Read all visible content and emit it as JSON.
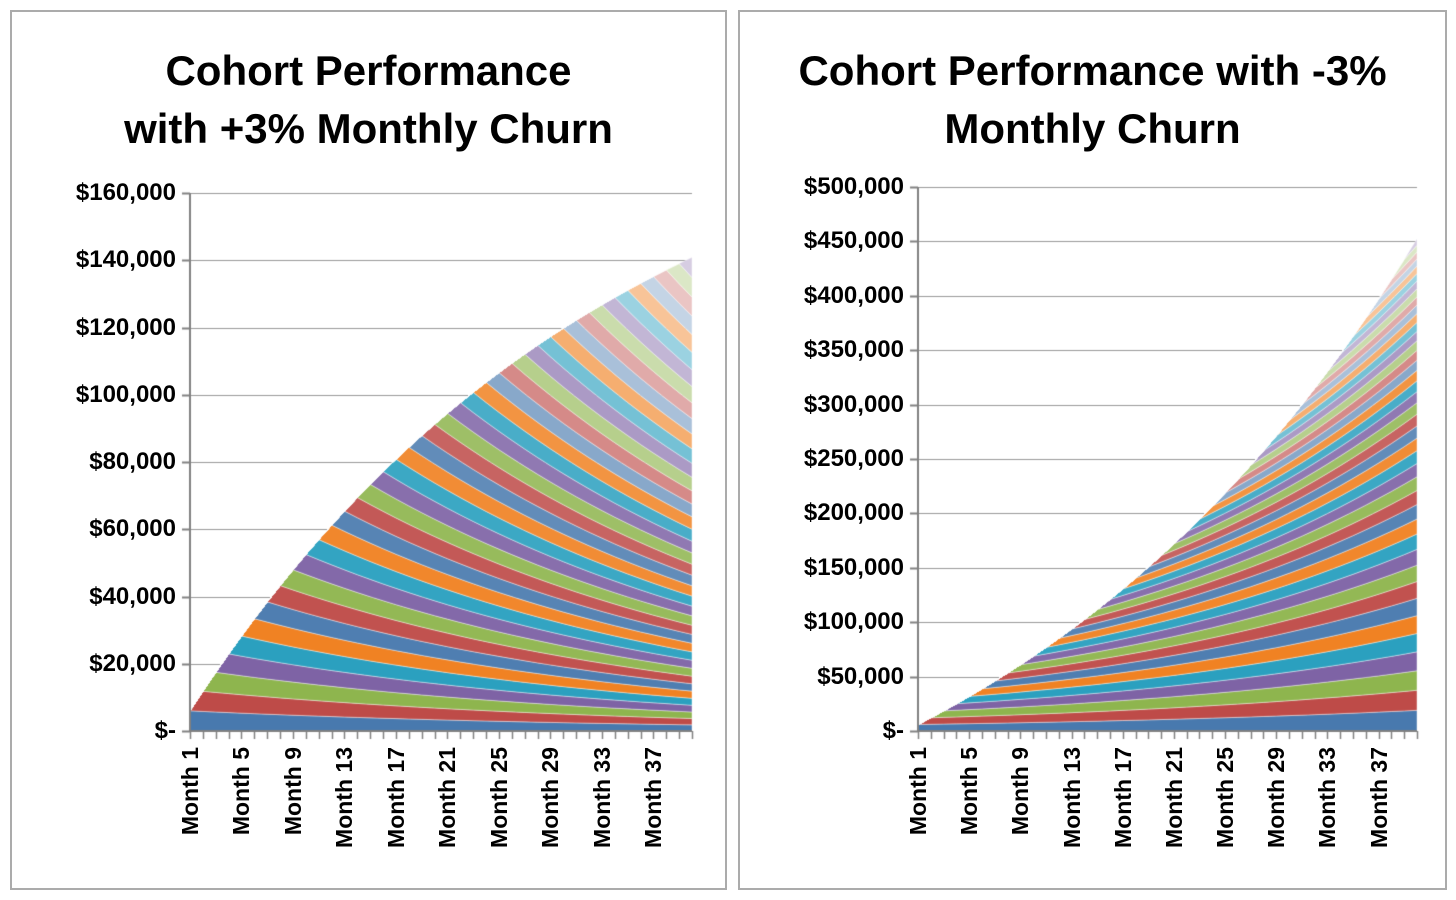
{
  "panels": [
    {
      "title_line1": "Cohort Performance",
      "title_line2": "with +3% Monthly Churn"
    },
    {
      "title_line1": "Cohort Performance with -3%",
      "title_line2": "Monthly Churn"
    }
  ],
  "style": {
    "palette": [
      "#4879AE",
      "#BE4B48",
      "#8EB54E",
      "#7E63A5",
      "#2BA0BF",
      "#F08223"
    ],
    "tint_groups": [
      0,
      0.04,
      0.08,
      0.14,
      0.35,
      0.53,
      0.68
    ],
    "band_separator": "rgba(255,255,255,0.5)",
    "gridline_color": "#999999",
    "axis_color": "#808080",
    "panel_border_color": "#ababab",
    "text_color": "#000000",
    "background": "#ffffff"
  },
  "chart_data": [
    {
      "type": "area",
      "stacked": true,
      "title": "Cohort Performance with +3% Monthly Churn",
      "legend": "none",
      "grid": true,
      "y_axis": {
        "min": 0,
        "max": 160000,
        "ticks": [
          {
            "value": 160000,
            "label": "$160,000"
          },
          {
            "value": 140000,
            "label": "$140,000"
          },
          {
            "value": 120000,
            "label": "$120,000"
          },
          {
            "value": 100000,
            "label": "$100,000"
          },
          {
            "value": 80000,
            "label": "$80,000"
          },
          {
            "value": 60000,
            "label": "$60,000"
          },
          {
            "value": 40000,
            "label": "$40,000"
          },
          {
            "value": 20000,
            "label": "$20,000"
          },
          {
            "value": 0,
            "label": "$-"
          }
        ]
      },
      "x_axis": {
        "ticks": [
          {
            "month": 1,
            "label": "Month 1"
          },
          {
            "month": 5,
            "label": "Month 5"
          },
          {
            "month": 9,
            "label": "Month 9"
          },
          {
            "month": 13,
            "label": "Month 13"
          },
          {
            "month": 17,
            "label": "Month 17"
          },
          {
            "month": 21,
            "label": "Month 21"
          },
          {
            "month": 25,
            "label": "Month 25"
          },
          {
            "month": 29,
            "label": "Month 29"
          },
          {
            "month": 33,
            "label": "Month 33"
          },
          {
            "month": 37,
            "label": "Month 37"
          }
        ]
      },
      "series_model": {
        "months": 40,
        "cohort_count": 40,
        "initial_monthly_revenue_per_cohort": 6000,
        "monthly_growth_rate": -0.03,
        "description": "One new cohort starts each month at $6,000 MRR and decays 3% per month; cohorts stacked oldest (bottom) to newest (top)."
      },
      "stack_total_by_month": [
        6000,
        11820,
        17465,
        22941,
        28253,
        33406,
        38403,
        43251,
        47954,
        52515,
        56940,
        61232,
        65395,
        69433,
        73350,
        77149,
        80835,
        84410,
        87878,
        91241,
        94504,
        97669,
        100739,
        103717,
        106605,
        109407,
        112125,
        114761,
        117318,
        119799,
        122205,
        124538,
        126802,
        128998,
        131128,
        133195,
        135199,
        137143,
        139028,
        140858
      ]
    },
    {
      "type": "area",
      "stacked": true,
      "title": "Cohort Performance with -3% Monthly Churn",
      "legend": "none",
      "grid": true,
      "y_axis": {
        "min": 0,
        "max": 500000,
        "ticks": [
          {
            "value": 500000,
            "label": "$500,000"
          },
          {
            "value": 450000,
            "label": "$450,000"
          },
          {
            "value": 400000,
            "label": "$400,000"
          },
          {
            "value": 350000,
            "label": "$350,000"
          },
          {
            "value": 300000,
            "label": "$300,000"
          },
          {
            "value": 250000,
            "label": "$250,000"
          },
          {
            "value": 200000,
            "label": "$200,000"
          },
          {
            "value": 150000,
            "label": "$150,000"
          },
          {
            "value": 100000,
            "label": "$100,000"
          },
          {
            "value": 50000,
            "label": "$50,000"
          },
          {
            "value": 0,
            "label": "$-"
          }
        ]
      },
      "x_axis": {
        "ticks": [
          {
            "month": 1,
            "label": "Month 1"
          },
          {
            "month": 5,
            "label": "Month 5"
          },
          {
            "month": 9,
            "label": "Month 9"
          },
          {
            "month": 13,
            "label": "Month 13"
          },
          {
            "month": 17,
            "label": "Month 17"
          },
          {
            "month": 21,
            "label": "Month 21"
          },
          {
            "month": 25,
            "label": "Month 25"
          },
          {
            "month": 29,
            "label": "Month 29"
          },
          {
            "month": 33,
            "label": "Month 33"
          },
          {
            "month": 37,
            "label": "Month 37"
          }
        ]
      },
      "series_model": {
        "months": 40,
        "cohort_count": 40,
        "initial_monthly_revenue_per_cohort": 6000,
        "monthly_growth_rate": 0.03,
        "description": "One new cohort starts each month at $6,000 MRR and grows 3% per month (negative churn); cohorts stacked oldest (bottom) to newest (top)."
      },
      "stack_total_by_month": [
        6000,
        12180,
        18545,
        25102,
        31855,
        38810,
        45975,
        53354,
        60955,
        68783,
        76847,
        85152,
        93707,
        102518,
        111593,
        120941,
        130570,
        140487,
        150701,
        161222,
        172059,
        183221,
        194717,
        206559,
        218756,
        231318,
        244258,
        257586,
        271313,
        285452,
        300016,
        315017,
        330467,
        346381,
        362772,
        379656,
        397045,
        414957,
        433405,
        452408
      ]
    }
  ]
}
